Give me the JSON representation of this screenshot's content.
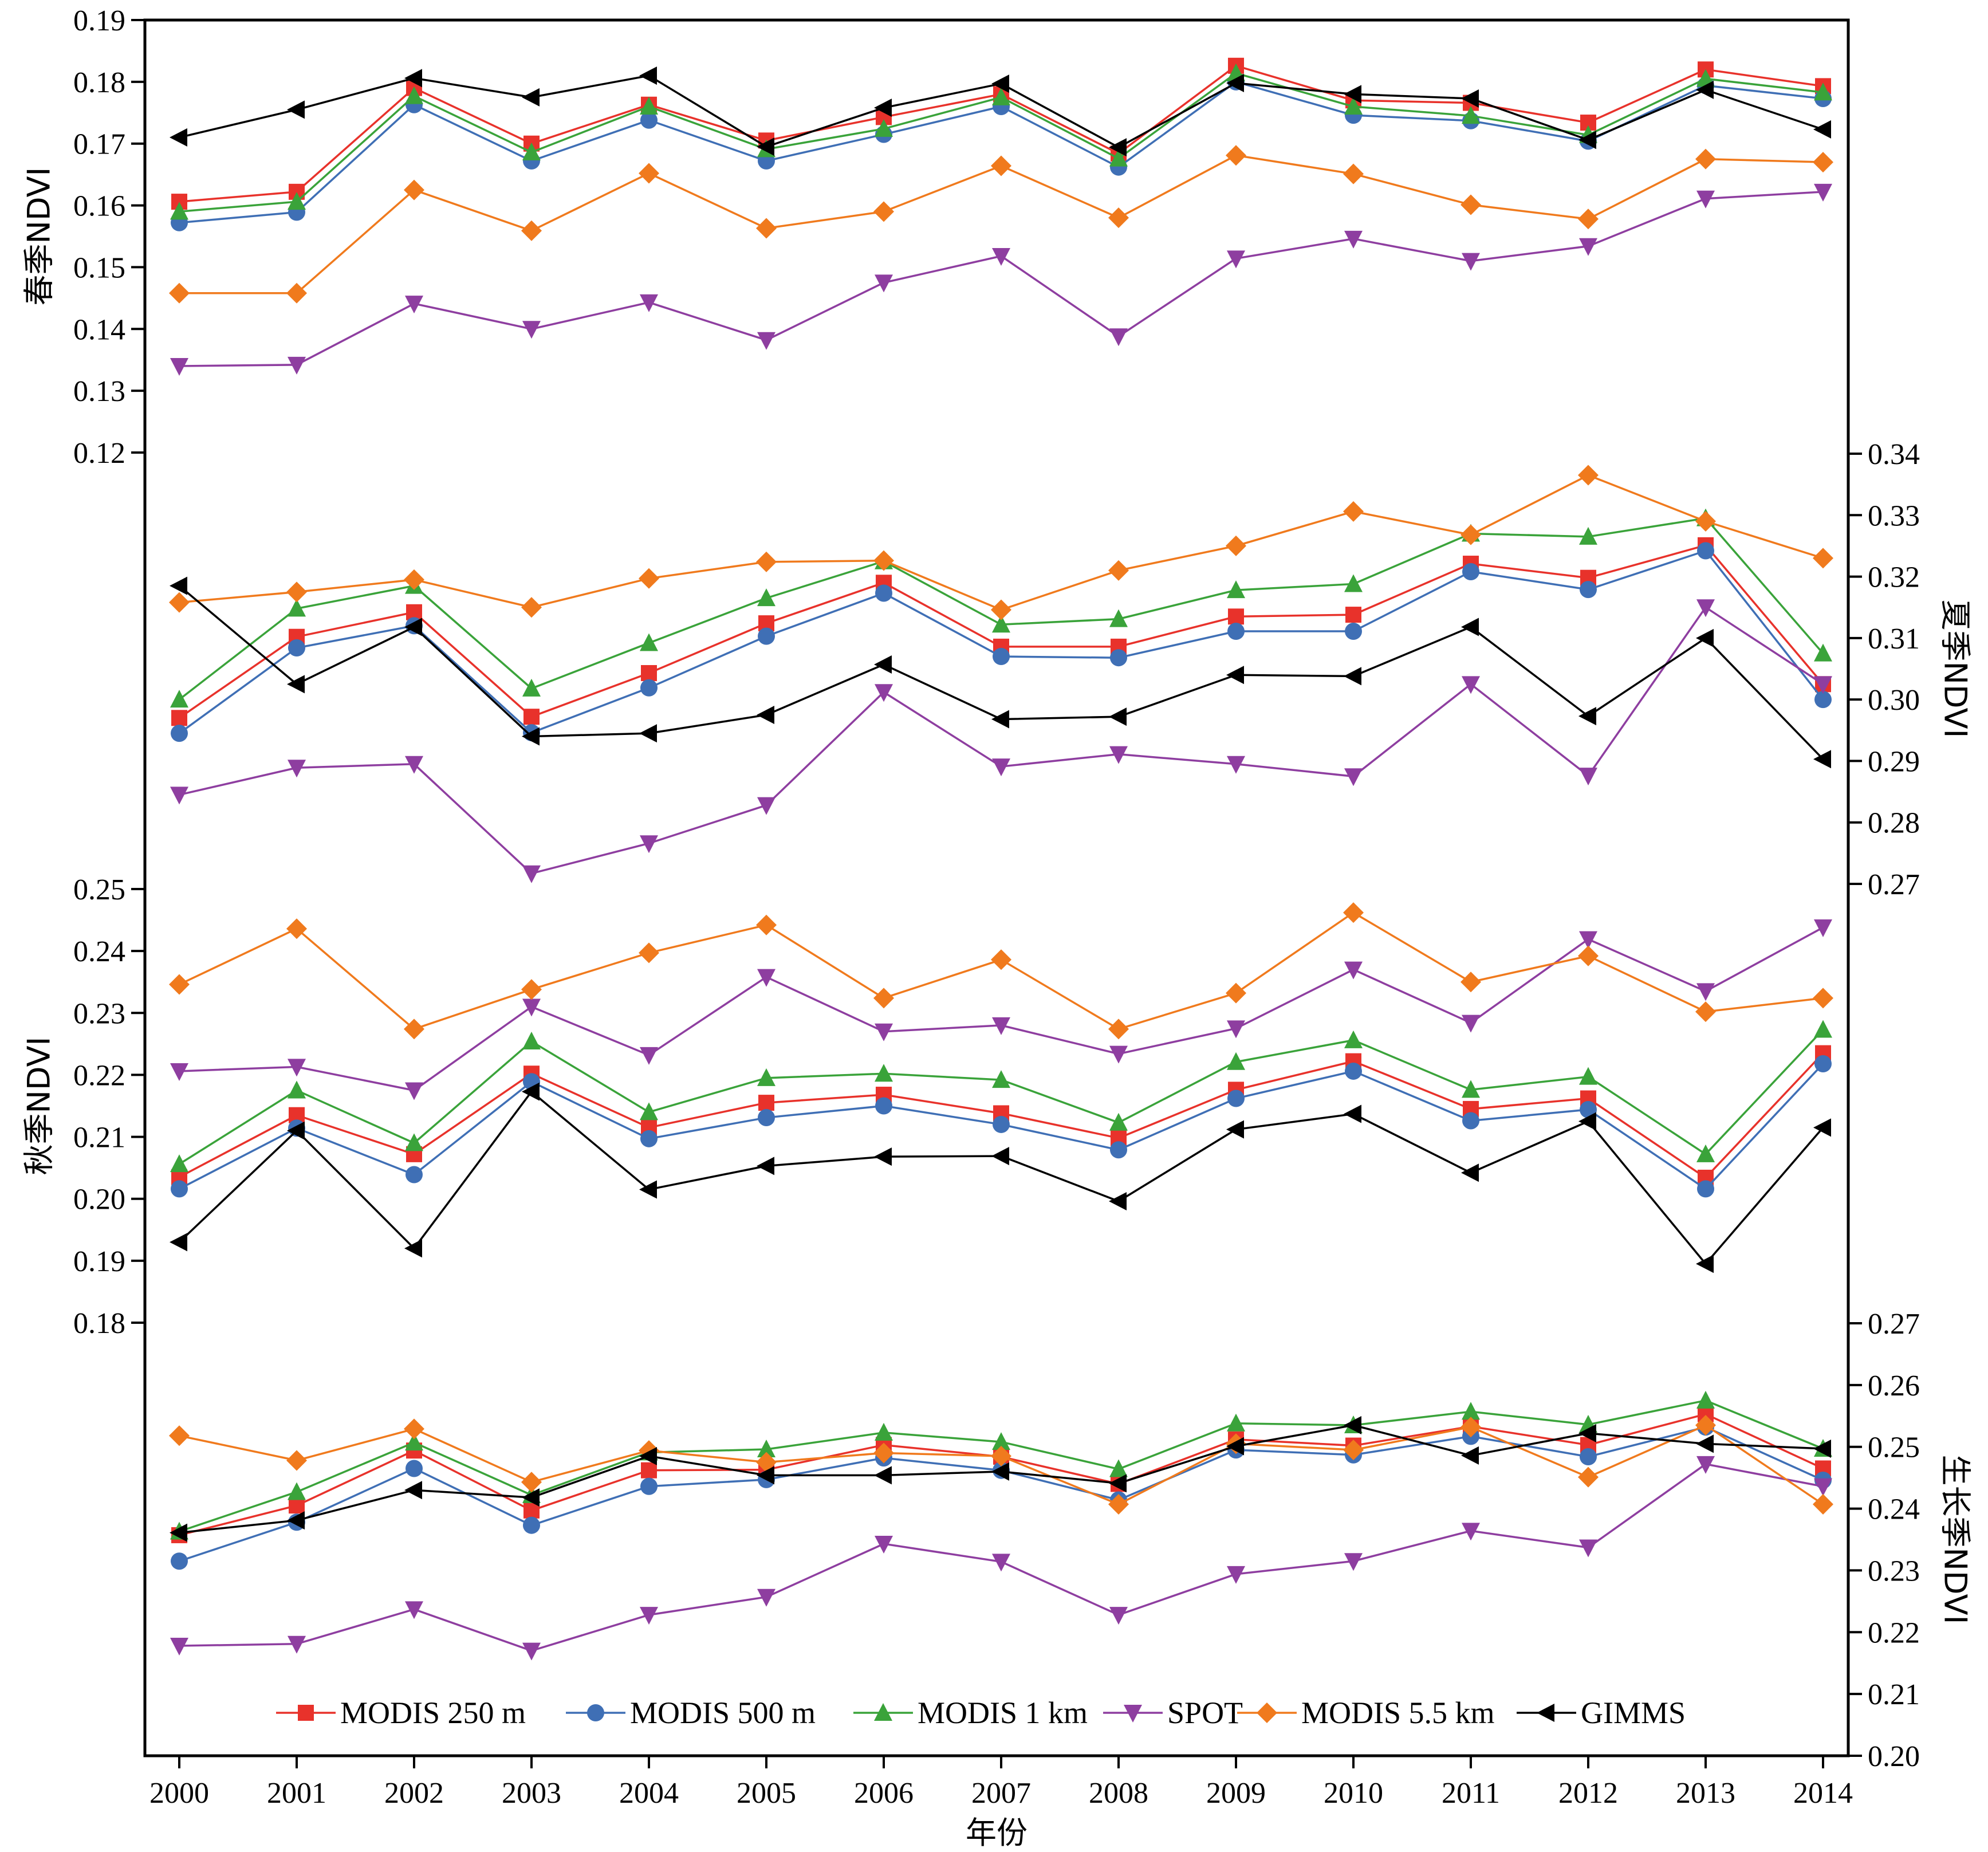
{
  "chart_data": {
    "type": "line",
    "x": [
      "2000",
      "2001",
      "2002",
      "2003",
      "2004",
      "2005",
      "2006",
      "2007",
      "2008",
      "2009",
      "2010",
      "2011",
      "2012",
      "2013",
      "2014"
    ],
    "xlabel": "年份",
    "grid": false,
    "legend_position": "bottom",
    "colors": {
      "MODIS 250 m": "#e8322b",
      "MODIS 500 m": "#3f6fb5",
      "MODIS 1 km": "#3aa33a",
      "SPOT": "#8e3ea0",
      "MODIS 5.5 km": "#f07a1d",
      "GIMMS": "#000000"
    },
    "markers": {
      "MODIS 250 m": "square",
      "MODIS 500 m": "circle",
      "MODIS 1 km": "triangle-up",
      "SPOT": "triangle-down",
      "MODIS 5.5 km": "diamond",
      "GIMMS": "triangle-left"
    },
    "panels": [
      {
        "ylabel": "春季NDVI",
        "axis_side": "left",
        "ticks": [
          "0.12",
          "0.13",
          "0.14",
          "0.15",
          "0.16",
          "0.17",
          "0.18",
          "0.19"
        ],
        "ylim": [
          0.12,
          0.19
        ],
        "series": [
          {
            "name": "MODIS 250 m",
            "values": [
              0.1606,
              0.1622,
              0.179,
              0.17,
              0.1763,
              0.1705,
              0.1743,
              0.178,
              0.1684,
              0.1826,
              0.177,
              0.1766,
              0.1734,
              0.182,
              0.1793
            ]
          },
          {
            "name": "MODIS 500 m",
            "values": [
              0.1572,
              0.1589,
              0.1763,
              0.1672,
              0.1738,
              0.1672,
              0.1715,
              0.176,
              0.1662,
              0.18,
              0.1746,
              0.1737,
              0.1704,
              0.1794,
              0.1773
            ]
          },
          {
            "name": "MODIS 1 km",
            "values": [
              0.159,
              0.1606,
              0.1777,
              0.1686,
              0.176,
              0.1691,
              0.1724,
              0.1775,
              0.1676,
              0.1814,
              0.176,
              0.1745,
              0.1714,
              0.1805,
              0.1783
            ]
          },
          {
            "name": "SPOT",
            "values": [
              0.134,
              0.1342,
              0.1441,
              0.14,
              0.1443,
              0.1382,
              0.1475,
              0.1518,
              0.1388,
              0.1514,
              0.1546,
              0.151,
              0.1534,
              0.1611,
              0.1622
            ]
          },
          {
            "name": "MODIS 5.5 km",
            "values": [
              0.1458,
              0.1458,
              0.1625,
              0.1559,
              0.1652,
              0.1563,
              0.159,
              0.1664,
              0.158,
              0.1681,
              0.1651,
              0.1601,
              0.1578,
              0.1675,
              0.167
            ]
          },
          {
            "name": "GIMMS",
            "values": [
              0.171,
              0.1755,
              0.1806,
              0.1775,
              0.181,
              0.1695,
              0.1758,
              0.1797,
              0.1694,
              0.1798,
              0.178,
              0.1773,
              0.1706,
              0.1787,
              0.1723
            ]
          }
        ]
      },
      {
        "ylabel": "夏季NDVI",
        "axis_side": "right",
        "ticks": [
          "0.27",
          "0.28",
          "0.29",
          "0.30",
          "0.31",
          "0.32",
          "0.33",
          "0.34"
        ],
        "ylim": [
          0.27,
          0.34
        ],
        "series": [
          {
            "name": "MODIS 250 m",
            "values": [
              0.297,
              0.3102,
              0.3142,
              0.2972,
              0.3043,
              0.3124,
              0.319,
              0.3086,
              0.3086,
              0.3135,
              0.3138,
              0.3221,
              0.3198,
              0.3251,
              0.3025
            ]
          },
          {
            "name": "MODIS 500 m",
            "values": [
              0.2945,
              0.3084,
              0.312,
              0.2946,
              0.3019,
              0.3103,
              0.3173,
              0.307,
              0.3068,
              0.3111,
              0.3111,
              0.3208,
              0.3179,
              0.3242,
              0.3
            ]
          },
          {
            "name": "MODIS 1 km",
            "values": [
              0.3,
              0.3148,
              0.3185,
              0.3018,
              0.3092,
              0.3165,
              0.3225,
              0.3122,
              0.3131,
              0.3178,
              0.3188,
              0.327,
              0.3265,
              0.3295,
              0.3075
            ]
          },
          {
            "name": "SPOT",
            "values": [
              0.2845,
              0.2889,
              0.2895,
              0.2717,
              0.2766,
              0.2828,
              0.3012,
              0.2891,
              0.2911,
              0.2895,
              0.2875,
              0.3025,
              0.2876,
              0.315,
              0.3025
            ]
          },
          {
            "name": "MODIS 5.5 km",
            "values": [
              0.3158,
              0.3175,
              0.3195,
              0.315,
              0.3197,
              0.3224,
              0.3226,
              0.3146,
              0.321,
              0.325,
              0.3306,
              0.3268,
              0.3365,
              0.329,
              0.323
            ]
          },
          {
            "name": "GIMMS",
            "values": [
              0.3185,
              0.3025,
              0.3118,
              0.294,
              0.2945,
              0.2975,
              0.3057,
              0.2968,
              0.2972,
              0.304,
              0.3038,
              0.3118,
              0.2973,
              0.31,
              0.2903
            ]
          }
        ]
      },
      {
        "ylabel": "秋季NDVI",
        "axis_side": "left",
        "ticks": [
          "0.18",
          "0.19",
          "0.20",
          "0.21",
          "0.22",
          "0.23",
          "0.24",
          "0.25"
        ],
        "ylim": [
          0.18,
          0.25
        ],
        "series": [
          {
            "name": "MODIS 250 m",
            "values": [
              0.2035,
              0.2135,
              0.2072,
              0.2202,
              0.2115,
              0.2155,
              0.2168,
              0.2138,
              0.2098,
              0.2176,
              0.2222,
              0.2145,
              0.2162,
              0.2034,
              0.2235
            ]
          },
          {
            "name": "MODIS 500 m",
            "values": [
              0.2016,
              0.2114,
              0.2039,
              0.2189,
              0.2097,
              0.2131,
              0.215,
              0.212,
              0.2079,
              0.2162,
              0.2206,
              0.2126,
              0.2144,
              0.2016,
              0.2218
            ]
          },
          {
            "name": "MODIS 1 km",
            "values": [
              0.2056,
              0.2175,
              0.209,
              0.2254,
              0.214,
              0.2195,
              0.2202,
              0.2192,
              0.2123,
              0.2221,
              0.2256,
              0.2176,
              0.2197,
              0.2072,
              0.2273
            ]
          },
          {
            "name": "SPOT",
            "values": [
              0.2206,
              0.2213,
              0.2175,
              0.231,
              0.2232,
              0.2358,
              0.227,
              0.228,
              0.2234,
              0.2275,
              0.237,
              0.2284,
              0.2419,
              0.2335,
              0.2438
            ]
          },
          {
            "name": "MODIS 5.5 km",
            "values": [
              0.2346,
              0.2436,
              0.2274,
              0.2338,
              0.2397,
              0.2442,
              0.2324,
              0.2386,
              0.2274,
              0.2332,
              0.2462,
              0.235,
              0.2392,
              0.2302,
              0.2324
            ]
          },
          {
            "name": "GIMMS",
            "values": [
              0.193,
              0.211,
              0.192,
              0.2173,
              0.2015,
              0.2053,
              0.2068,
              0.2069,
              0.1996,
              0.2112,
              0.2137,
              0.2042,
              0.2125,
              0.1895,
              0.2115
            ]
          }
        ]
      },
      {
        "ylabel": "生长季NDVI",
        "axis_side": "right",
        "ticks": [
          "0.20",
          "0.21",
          "0.22",
          "0.23",
          "0.24",
          "0.25",
          "0.26",
          "0.27"
        ],
        "ylim": [
          0.2,
          0.27
        ],
        "series": [
          {
            "name": "MODIS 250 m",
            "values": [
              0.2357,
              0.2405,
              0.2494,
              0.2397,
              0.2462,
              0.2463,
              0.2503,
              0.2484,
              0.244,
              0.2512,
              0.2502,
              0.2533,
              0.2503,
              0.2553,
              0.2465
            ]
          },
          {
            "name": "MODIS 500 m",
            "values": [
              0.2315,
              0.2378,
              0.2465,
              0.2373,
              0.2436,
              0.2447,
              0.2482,
              0.2462,
              0.2414,
              0.2495,
              0.2487,
              0.2517,
              0.2484,
              0.2532,
              0.2446
            ]
          },
          {
            "name": "MODIS 1 km",
            "values": [
              0.2363,
              0.2427,
              0.2507,
              0.2422,
              0.2491,
              0.2496,
              0.2523,
              0.2508,
              0.2464,
              0.2538,
              0.2535,
              0.2557,
              0.2536,
              0.2575,
              0.2497
            ]
          },
          {
            "name": "SPOT",
            "values": [
              0.2178,
              0.2181,
              0.2237,
              0.217,
              0.2228,
              0.2257,
              0.2343,
              0.2314,
              0.2228,
              0.2294,
              0.2315,
              0.2364,
              0.2337,
              0.2472,
              0.2436
            ]
          },
          {
            "name": "MODIS 5.5 km",
            "values": [
              0.2518,
              0.2478,
              0.2529,
              0.2443,
              0.2494,
              0.2475,
              0.249,
              0.2485,
              0.2407,
              0.2505,
              0.2495,
              0.2532,
              0.2451,
              0.2535,
              0.2407
            ]
          },
          {
            "name": "GIMMS",
            "values": [
              0.2361,
              0.2381,
              0.243,
              0.2418,
              0.2485,
              0.2454,
              0.2454,
              0.246,
              0.2441,
              0.2501,
              0.2535,
              0.2486,
              0.2522,
              0.2505,
              0.2497
            ]
          }
        ]
      }
    ]
  }
}
